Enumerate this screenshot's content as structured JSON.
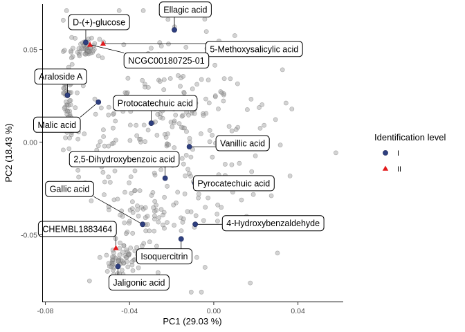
{
  "chart_data": {
    "type": "scatter",
    "xlabel": "PC1 (29.03 %)",
    "ylabel": "PC2 (18.43 %)",
    "xlim": [
      -0.0815,
      0.0615
    ],
    "ylim": [
      -0.0865,
      0.0745
    ],
    "xticks": [
      {
        "value": -0.08,
        "label": "-0.08"
      },
      {
        "value": -0.04,
        "label": "-0.04"
      },
      {
        "value": 0.0,
        "label": "0.00"
      },
      {
        "value": 0.04,
        "label": "0.04"
      }
    ],
    "yticks": [
      {
        "value": 0.05,
        "label": "0.05"
      },
      {
        "value": 0.0,
        "label": "0.00"
      },
      {
        "value": -0.05,
        "label": "-0.05"
      }
    ],
    "grid": false,
    "legend": {
      "title": "Identification level",
      "position": "right",
      "entries": [
        {
          "label": "I",
          "shape": "circle",
          "color": "#2e3f7f"
        },
        {
          "label": "II",
          "shape": "triangle",
          "color": "#e31a1c"
        }
      ]
    },
    "colors": {
      "background_points": "#9e9e9e",
      "level_I": "#2e3f7f",
      "level_II": "#e31a1c"
    },
    "highlighted": [
      {
        "name": "Ellagic acid",
        "level": "I",
        "x": -0.0187,
        "y": 0.0606,
        "label_x": -0.0135,
        "label_y": 0.0716
      },
      {
        "name": "D-(+)-glucose",
        "level": "I",
        "x": -0.0608,
        "y": 0.0538,
        "label_x": -0.0545,
        "label_y": 0.0648
      },
      {
        "name": "5-Methoxysalicylic acid",
        "level": "II",
        "x": -0.0526,
        "y": 0.0532,
        "label_x": 0.0192,
        "label_y": 0.0503
      },
      {
        "name": "NCGC00180725-01",
        "level": "II",
        "x": -0.0588,
        "y": 0.0526,
        "label_x": -0.0225,
        "label_y": 0.0441
      },
      {
        "name": "Araloside A",
        "level": "I",
        "x": -0.0695,
        "y": 0.0253,
        "label_x": -0.0727,
        "label_y": 0.0354
      },
      {
        "name": "Malic acid",
        "level": "I",
        "x": -0.0548,
        "y": 0.0216,
        "label_x": -0.0745,
        "label_y": 0.0094
      },
      {
        "name": "Protocatechuic acid",
        "level": "I",
        "x": -0.0297,
        "y": 0.0102,
        "label_x": -0.0278,
        "label_y": 0.0211
      },
      {
        "name": "Vanillic acid",
        "level": "I",
        "x": -0.0116,
        "y": -0.0025,
        "label_x": 0.0137,
        "label_y": -0.0006
      },
      {
        "name": "2,5-Dihydroxybenzoic acid",
        "level": "I",
        "x": -0.0231,
        "y": -0.0195,
        "label_x": -0.0425,
        "label_y": -0.0092
      },
      {
        "name": "Pyrocatechuic acid",
        "level": "I",
        "x": -0.0089,
        "y": -0.0222,
        "label_x": 0.0095,
        "label_y": -0.0222
      },
      {
        "name": "Gallic acid",
        "level": "I",
        "x": -0.0338,
        "y": -0.0444,
        "label_x": -0.0685,
        "label_y": -0.0253
      },
      {
        "name": "4-Hydroxybenzaldehyde",
        "level": "I",
        "x": -0.0088,
        "y": -0.0444,
        "label_x": 0.0282,
        "label_y": -0.0438
      },
      {
        "name": "CHEMBL1883464",
        "level": "II",
        "x": -0.0465,
        "y": -0.0572,
        "label_x": -0.0648,
        "label_y": -0.0469
      },
      {
        "name": "Isoquercitrin",
        "level": "I",
        "x": -0.0155,
        "y": -0.0523,
        "label_x": -0.0235,
        "label_y": -0.0617
      },
      {
        "name": "Jaligonic acid",
        "level": "I",
        "x": -0.0455,
        "y": -0.0672,
        "label_x": -0.0355,
        "label_y": -0.0758
      }
    ]
  }
}
